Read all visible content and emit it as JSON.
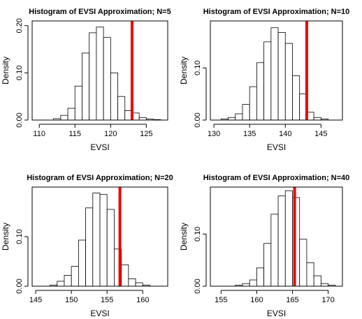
{
  "chart_data": [
    {
      "type": "bar",
      "title": "Histogram of EVSI Approximation; N=5",
      "xlabel": "EVSI",
      "ylabel": "Density",
      "xlim": [
        109,
        128
      ],
      "ylim": [
        0,
        0.21
      ],
      "xticks": [
        110,
        115,
        120,
        125
      ],
      "yticks": [
        0.0,
        0.1,
        0.2
      ],
      "ytick_labels": [
        "0.00",
        "0.10",
        "0.20"
      ],
      "bin_edges": [
        110,
        111,
        112,
        113,
        114,
        115,
        116,
        117,
        118,
        119,
        120,
        121,
        122,
        123,
        124,
        125,
        126,
        127
      ],
      "values": [
        0.0,
        0.0,
        0.003,
        0.01,
        0.025,
        0.072,
        0.142,
        0.185,
        0.197,
        0.175,
        0.1,
        0.05,
        0.02,
        0.015,
        0.005,
        0.002,
        0.001
      ],
      "reference_line": {
        "x": 123,
        "color": "#ee0000"
      }
    },
    {
      "type": "bar",
      "title": "Histogram of EVSI Approximation; N=10",
      "xlabel": "EVSI",
      "ylabel": "Density",
      "xlim": [
        129.5,
        148
      ],
      "ylim": [
        0,
        0.19
      ],
      "xticks": [
        130,
        135,
        140,
        145
      ],
      "yticks": [
        0.0,
        0.1
      ],
      "ytick_labels": [
        "0.00",
        "0.10"
      ],
      "bin_edges": [
        130,
        131,
        132,
        133,
        134,
        135,
        136,
        137,
        138,
        139,
        140,
        141,
        142,
        143,
        144,
        145,
        146,
        147
      ],
      "values": [
        0.0,
        0.002,
        0.005,
        0.012,
        0.03,
        0.064,
        0.11,
        0.15,
        0.177,
        0.168,
        0.147,
        0.085,
        0.05,
        0.015,
        0.005,
        0.002,
        0.0
      ],
      "reference_line": {
        "x": 143,
        "color": "#ee0000"
      }
    },
    {
      "type": "bar",
      "title": "Histogram of EVSI Approximation; N=20",
      "xlabel": "EVSI",
      "ylabel": "Density",
      "xlim": [
        144.5,
        163.5
      ],
      "ylim": [
        0,
        0.2
      ],
      "xticks": [
        145,
        150,
        155,
        160
      ],
      "yticks": [
        0.0,
        0.1
      ],
      "ytick_labels": [
        "0.00",
        "0.10"
      ],
      "bin_edges": [
        146,
        147,
        148,
        149,
        150,
        151,
        152,
        153,
        154,
        155,
        156,
        157,
        158,
        159,
        160,
        161,
        162
      ],
      "values": [
        0.0,
        0.002,
        0.01,
        0.022,
        0.04,
        0.093,
        0.158,
        0.188,
        0.185,
        0.155,
        0.075,
        0.043,
        0.015,
        0.007,
        0.002,
        0.0
      ],
      "reference_line": {
        "x": 156.8,
        "color": "#ee0000"
      }
    },
    {
      "type": "bar",
      "title": "Histogram of EVSI Approximation; N=40",
      "xlabel": "EVSI",
      "ylabel": "Density",
      "xlim": [
        153.5,
        172
      ],
      "ylim": [
        0,
        0.19
      ],
      "xticks": [
        155,
        160,
        165,
        170
      ],
      "yticks": [
        0.0,
        0.1
      ],
      "ytick_labels": [
        "0.00",
        "0.10"
      ],
      "bin_edges": [
        156,
        157,
        158,
        159,
        160,
        161,
        162,
        163,
        164,
        165,
        166,
        167,
        168,
        169,
        170,
        171
      ],
      "values": [
        0.0,
        0.002,
        0.005,
        0.012,
        0.035,
        0.082,
        0.138,
        0.173,
        0.183,
        0.17,
        0.09,
        0.045,
        0.02,
        0.005,
        0.002
      ],
      "reference_line": {
        "x": 165.3,
        "color": "#ee0000"
      }
    }
  ]
}
